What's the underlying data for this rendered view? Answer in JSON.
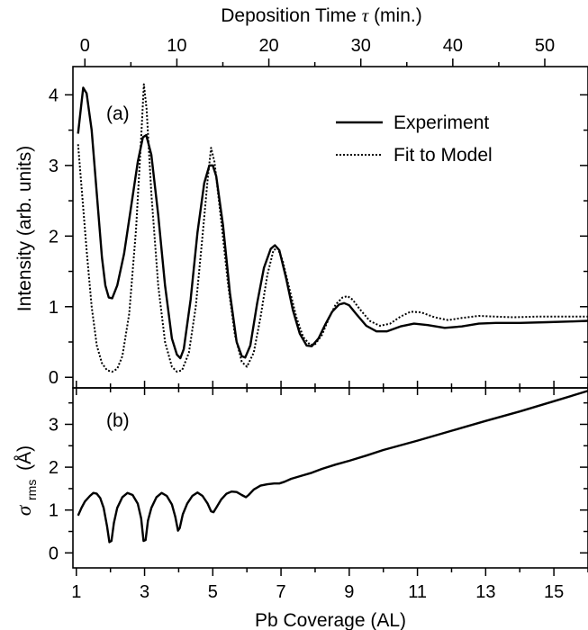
{
  "chart_data": [
    {
      "panel": "(a)",
      "type": "line",
      "xlabel": "Pb Coverage (AL)",
      "ylabel": "Intensity (arb. units)",
      "top_xlabel_prefix": "Deposition Time",
      "top_xlabel_symbol": "τ",
      "top_xlabel_suffix": "(min.)",
      "xlim": [
        0.9,
        16
      ],
      "ylim": [
        -0.15,
        4.4
      ],
      "top_xlim": [
        -1.3,
        54.7
      ],
      "x_ticks": [
        1,
        3,
        5,
        7,
        9,
        11,
        13,
        15
      ],
      "x_tick_labels": [
        "1",
        "3",
        "5",
        "7",
        "9",
        "11",
        "13",
        "15"
      ],
      "y_ticks": [
        0,
        1,
        2,
        3,
        4
      ],
      "y_tick_labels": [
        "0",
        "1",
        "2",
        "3",
        "4"
      ],
      "top_ticks": [
        0,
        10,
        20,
        30,
        40,
        50
      ],
      "top_tick_labels": [
        "0",
        "10",
        "20",
        "30",
        "40",
        "50"
      ],
      "legend_placement": "top-right",
      "series": [
        {
          "name": "Experiment",
          "style": "solid",
          "color": "#000000",
          "points": [
            [
              1.05,
              3.45
            ],
            [
              1.12,
              3.75
            ],
            [
              1.2,
              4.1
            ],
            [
              1.3,
              4.02
            ],
            [
              1.45,
              3.5
            ],
            [
              1.6,
              2.6
            ],
            [
              1.75,
              1.7
            ],
            [
              1.85,
              1.3
            ],
            [
              1.95,
              1.13
            ],
            [
              2.05,
              1.12
            ],
            [
              2.2,
              1.3
            ],
            [
              2.4,
              1.75
            ],
            [
              2.6,
              2.4
            ],
            [
              2.8,
              3.05
            ],
            [
              2.95,
              3.4
            ],
            [
              3.05,
              3.43
            ],
            [
              3.2,
              3.15
            ],
            [
              3.4,
              2.3
            ],
            [
              3.6,
              1.3
            ],
            [
              3.8,
              0.55
            ],
            [
              3.95,
              0.32
            ],
            [
              4.05,
              0.27
            ],
            [
              4.15,
              0.4
            ],
            [
              4.35,
              1.1
            ],
            [
              4.55,
              2.05
            ],
            [
              4.75,
              2.75
            ],
            [
              4.9,
              3.0
            ],
            [
              5.0,
              3.0
            ],
            [
              5.1,
              2.85
            ],
            [
              5.3,
              2.15
            ],
            [
              5.5,
              1.2
            ],
            [
              5.7,
              0.5
            ],
            [
              5.85,
              0.3
            ],
            [
              5.95,
              0.28
            ],
            [
              6.1,
              0.45
            ],
            [
              6.3,
              1.05
            ],
            [
              6.5,
              1.55
            ],
            [
              6.7,
              1.82
            ],
            [
              6.82,
              1.87
            ],
            [
              6.95,
              1.8
            ],
            [
              7.15,
              1.4
            ],
            [
              7.35,
              0.95
            ],
            [
              7.55,
              0.62
            ],
            [
              7.75,
              0.45
            ],
            [
              7.9,
              0.44
            ],
            [
              8.1,
              0.55
            ],
            [
              8.3,
              0.75
            ],
            [
              8.5,
              0.93
            ],
            [
              8.7,
              1.03
            ],
            [
              8.85,
              1.05
            ],
            [
              9.0,
              1.02
            ],
            [
              9.2,
              0.9
            ],
            [
              9.5,
              0.73
            ],
            [
              9.8,
              0.65
            ],
            [
              10.1,
              0.65
            ],
            [
              10.5,
              0.72
            ],
            [
              10.9,
              0.76
            ],
            [
              11.3,
              0.74
            ],
            [
              11.8,
              0.7
            ],
            [
              12.3,
              0.72
            ],
            [
              12.8,
              0.76
            ],
            [
              13.3,
              0.77
            ],
            [
              14.0,
              0.77
            ],
            [
              14.8,
              0.78
            ],
            [
              15.5,
              0.79
            ],
            [
              16.0,
              0.8
            ]
          ]
        },
        {
          "name": "Fit to Model",
          "style": "dotted",
          "color": "#000000",
          "points": [
            [
              1.05,
              3.3
            ],
            [
              1.15,
              2.7
            ],
            [
              1.3,
              1.8
            ],
            [
              1.45,
              1.0
            ],
            [
              1.6,
              0.45
            ],
            [
              1.75,
              0.2
            ],
            [
              1.9,
              0.1
            ],
            [
              2.05,
              0.08
            ],
            [
              2.2,
              0.12
            ],
            [
              2.35,
              0.3
            ],
            [
              2.55,
              0.9
            ],
            [
              2.75,
              2.1
            ],
            [
              2.9,
              3.4
            ],
            [
              2.98,
              4.15
            ],
            [
              3.06,
              3.8
            ],
            [
              3.2,
              2.6
            ],
            [
              3.4,
              1.3
            ],
            [
              3.6,
              0.5
            ],
            [
              3.8,
              0.15
            ],
            [
              3.95,
              0.08
            ],
            [
              4.1,
              0.1
            ],
            [
              4.3,
              0.35
            ],
            [
              4.5,
              1.0
            ],
            [
              4.7,
              2.0
            ],
            [
              4.85,
              2.8
            ],
            [
              4.95,
              3.25
            ],
            [
              5.05,
              3.05
            ],
            [
              5.25,
              2.2
            ],
            [
              5.45,
              1.3
            ],
            [
              5.65,
              0.6
            ],
            [
              5.85,
              0.22
            ],
            [
              6.0,
              0.15
            ],
            [
              6.2,
              0.35
            ],
            [
              6.4,
              0.85
            ],
            [
              6.6,
              1.45
            ],
            [
              6.78,
              1.8
            ],
            [
              6.9,
              1.83
            ],
            [
              7.05,
              1.65
            ],
            [
              7.25,
              1.25
            ],
            [
              7.45,
              0.85
            ],
            [
              7.65,
              0.57
            ],
            [
              7.85,
              0.46
            ],
            [
              8.0,
              0.47
            ],
            [
              8.2,
              0.6
            ],
            [
              8.4,
              0.83
            ],
            [
              8.6,
              1.03
            ],
            [
              8.8,
              1.13
            ],
            [
              8.95,
              1.15
            ],
            [
              9.1,
              1.1
            ],
            [
              9.3,
              0.97
            ],
            [
              9.6,
              0.8
            ],
            [
              9.9,
              0.73
            ],
            [
              10.2,
              0.76
            ],
            [
              10.5,
              0.86
            ],
            [
              10.8,
              0.93
            ],
            [
              11.1,
              0.92
            ],
            [
              11.5,
              0.85
            ],
            [
              11.9,
              0.81
            ],
            [
              12.3,
              0.84
            ],
            [
              12.8,
              0.87
            ],
            [
              13.3,
              0.86
            ],
            [
              13.8,
              0.85
            ],
            [
              14.5,
              0.86
            ],
            [
              15.2,
              0.86
            ],
            [
              16.0,
              0.86
            ]
          ]
        }
      ]
    },
    {
      "panel": "(b)",
      "type": "line",
      "ylabel_symbol": "σ",
      "ylabel_sub": "rms",
      "ylabel_unit": "(Å)",
      "xlim": [
        0.9,
        16
      ],
      "ylim": [
        -0.35,
        3.85
      ],
      "y_ticks": [
        0,
        1,
        2,
        3
      ],
      "y_tick_labels": [
        "0",
        "1",
        "2",
        "3"
      ],
      "series": [
        {
          "style": "solid",
          "color": "#000000",
          "points": [
            [
              1.05,
              0.87
            ],
            [
              1.15,
              1.05
            ],
            [
              1.25,
              1.2
            ],
            [
              1.4,
              1.33
            ],
            [
              1.5,
              1.4
            ],
            [
              1.6,
              1.38
            ],
            [
              1.7,
              1.28
            ],
            [
              1.8,
              1.05
            ],
            [
              1.9,
              0.62
            ],
            [
              1.97,
              0.25
            ],
            [
              2.03,
              0.28
            ],
            [
              2.1,
              0.7
            ],
            [
              2.2,
              1.05
            ],
            [
              2.35,
              1.3
            ],
            [
              2.5,
              1.4
            ],
            [
              2.65,
              1.35
            ],
            [
              2.8,
              1.15
            ],
            [
              2.9,
              0.8
            ],
            [
              2.97,
              0.28
            ],
            [
              3.03,
              0.3
            ],
            [
              3.1,
              0.75
            ],
            [
              3.2,
              1.05
            ],
            [
              3.35,
              1.3
            ],
            [
              3.5,
              1.4
            ],
            [
              3.65,
              1.33
            ],
            [
              3.8,
              1.13
            ],
            [
              3.9,
              0.85
            ],
            [
              3.98,
              0.52
            ],
            [
              4.03,
              0.58
            ],
            [
              4.12,
              0.9
            ],
            [
              4.25,
              1.15
            ],
            [
              4.4,
              1.33
            ],
            [
              4.55,
              1.41
            ],
            [
              4.7,
              1.33
            ],
            [
              4.85,
              1.15
            ],
            [
              4.95,
              0.97
            ],
            [
              5.02,
              0.95
            ],
            [
              5.1,
              1.05
            ],
            [
              5.25,
              1.25
            ],
            [
              5.4,
              1.38
            ],
            [
              5.55,
              1.43
            ],
            [
              5.7,
              1.42
            ],
            [
              5.85,
              1.35
            ],
            [
              5.97,
              1.3
            ],
            [
              6.05,
              1.35
            ],
            [
              6.2,
              1.48
            ],
            [
              6.4,
              1.57
            ],
            [
              6.6,
              1.6
            ],
            [
              6.8,
              1.62
            ],
            [
              6.95,
              1.62
            ],
            [
              7.1,
              1.66
            ],
            [
              7.3,
              1.73
            ],
            [
              7.6,
              1.8
            ],
            [
              7.9,
              1.87
            ],
            [
              8.2,
              1.96
            ],
            [
              8.6,
              2.06
            ],
            [
              9.0,
              2.15
            ],
            [
              9.5,
              2.27
            ],
            [
              10.0,
              2.4
            ],
            [
              11.0,
              2.62
            ],
            [
              12.0,
              2.85
            ],
            [
              13.0,
              3.08
            ],
            [
              14.0,
              3.3
            ],
            [
              15.0,
              3.54
            ],
            [
              16.0,
              3.78
            ]
          ]
        }
      ]
    }
  ]
}
